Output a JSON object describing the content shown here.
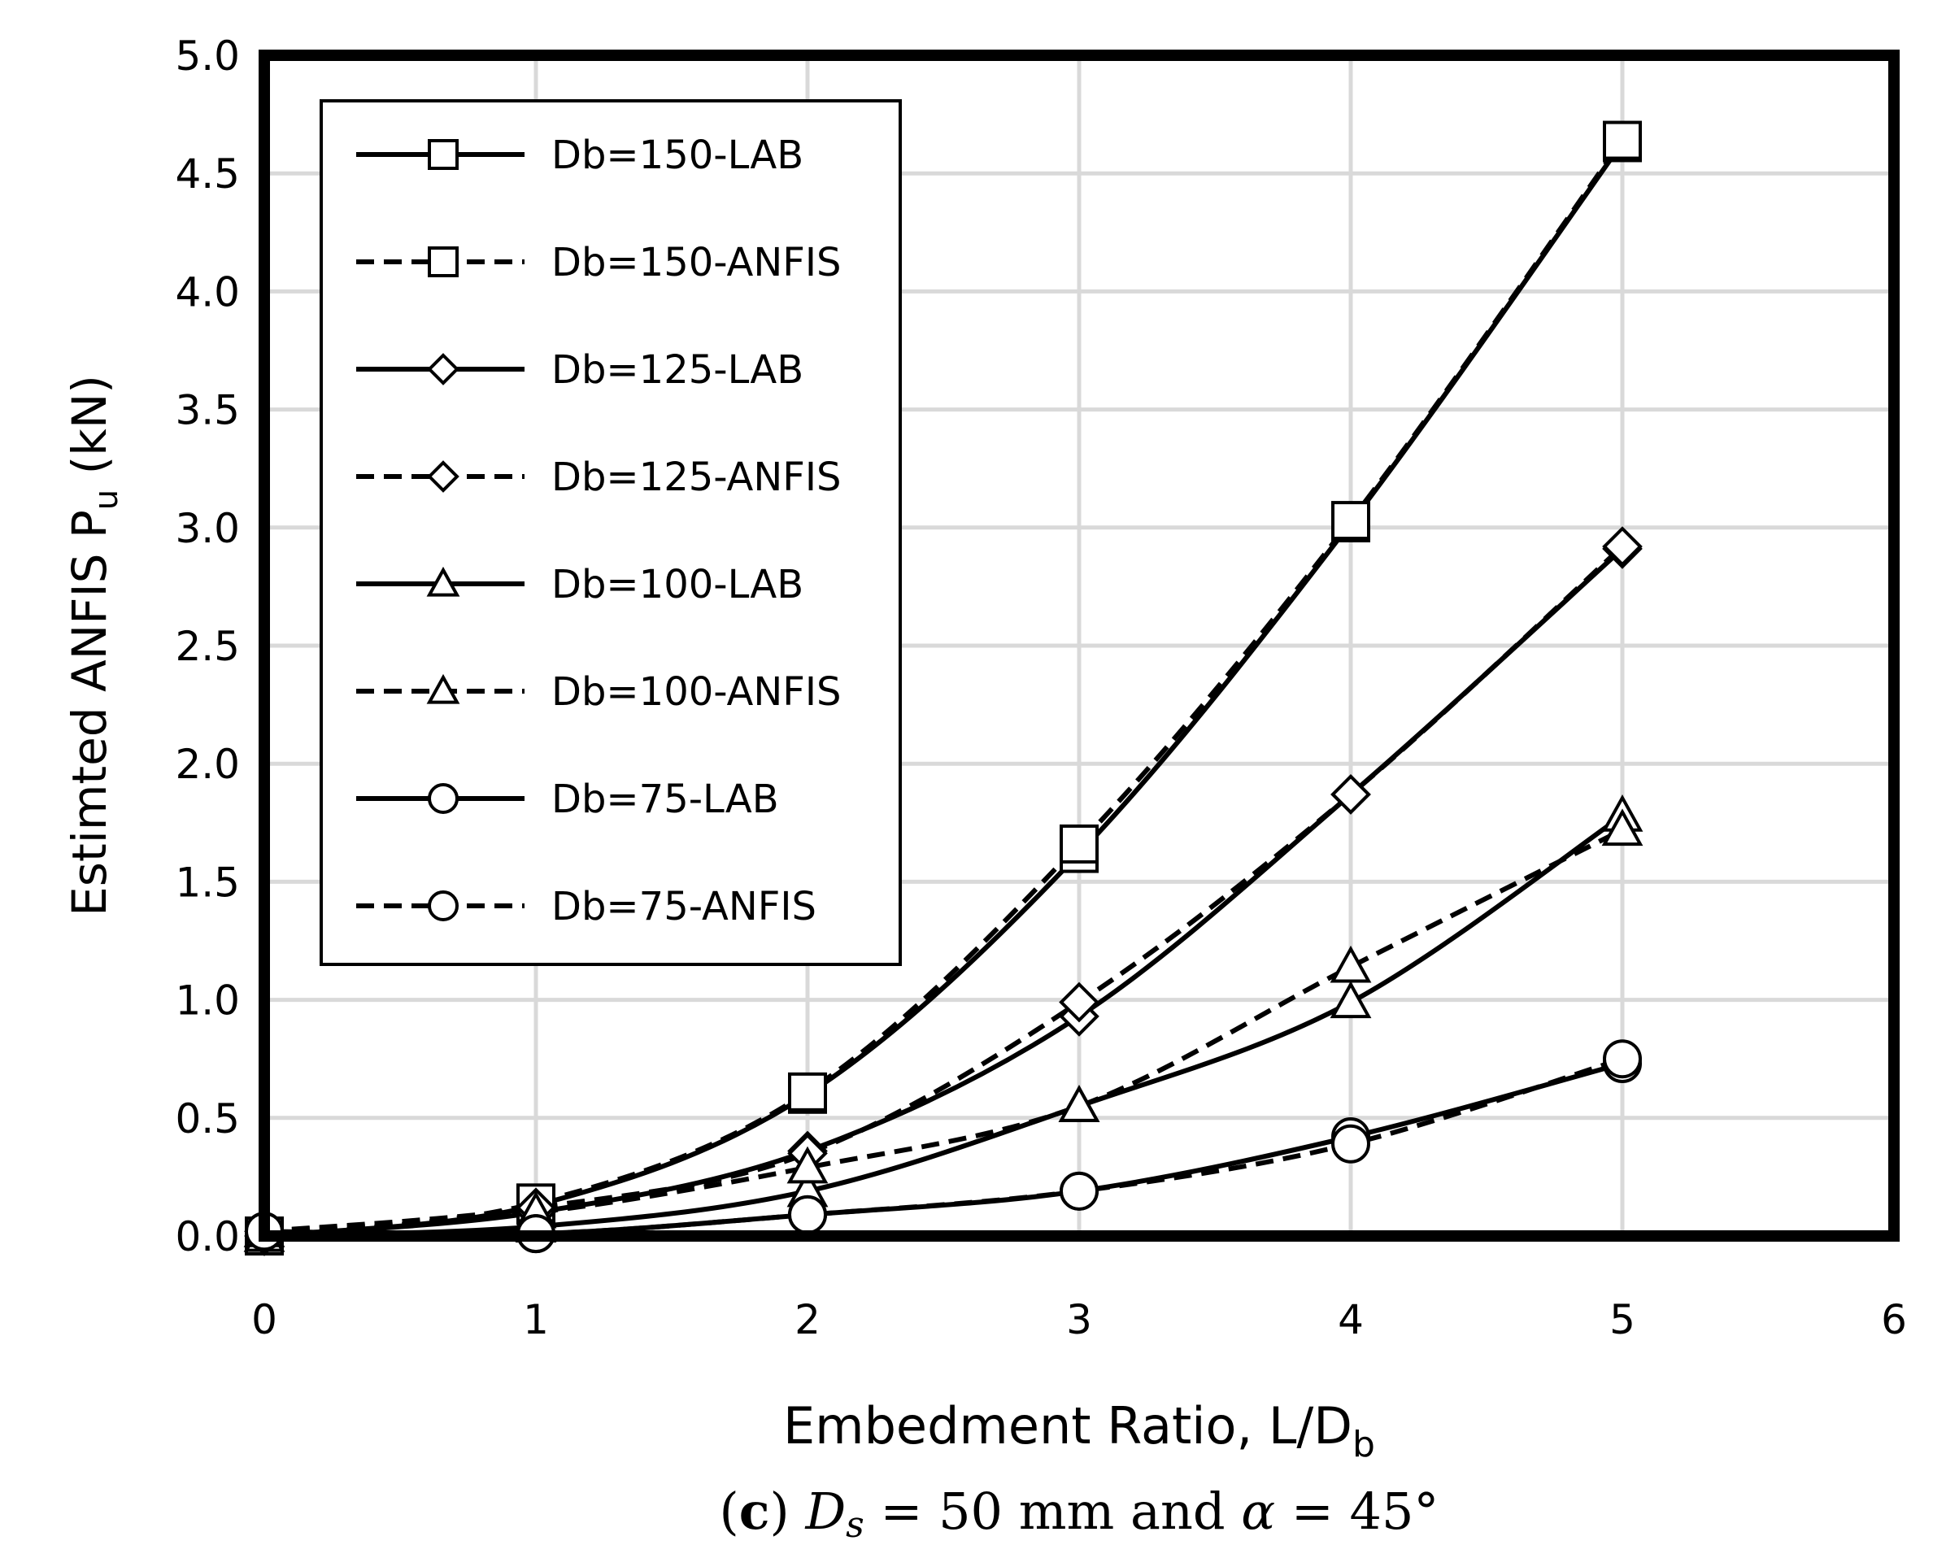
{
  "chart_data": {
    "type": "line",
    "title": "",
    "xlabel_main": "Embedment Ratio, L/D",
    "xlabel_sub": "b",
    "ylabel_main": "Estimted ANFIS P",
    "ylabel_sub": "u",
    "ylabel_unit": " (kN)",
    "xlim": [
      0,
      6
    ],
    "ylim": [
      0,
      5
    ],
    "x_ticks": [
      "0",
      "1",
      "2",
      "3",
      "4",
      "5",
      "6"
    ],
    "y_ticks": [
      "0.0",
      "0.5",
      "1.0",
      "1.5",
      "2.0",
      "2.5",
      "3.0",
      "3.5",
      "4.0",
      "4.5",
      "5.0"
    ],
    "grid": true,
    "legend_position": "top-left",
    "series": [
      {
        "name": "Db=150-LAB",
        "marker": "square",
        "dash": "solid",
        "x": [
          0,
          1,
          2,
          3,
          4,
          5
        ],
        "values": [
          0.0,
          0.13,
          0.6,
          1.62,
          3.02,
          4.63
        ]
      },
      {
        "name": "Db=150-ANFIS",
        "marker": "square",
        "dash": "dashed",
        "x": [
          0,
          1,
          2,
          3,
          4,
          5
        ],
        "values": [
          0.0,
          0.14,
          0.61,
          1.66,
          3.03,
          4.64
        ]
      },
      {
        "name": "Db=125-LAB",
        "marker": "diamond",
        "dash": "solid",
        "x": [
          0,
          1,
          2,
          3,
          4,
          5
        ],
        "values": [
          0.0,
          0.1,
          0.36,
          0.93,
          1.87,
          2.91
        ]
      },
      {
        "name": "Db=125-ANFIS",
        "marker": "diamond",
        "dash": "dashed",
        "x": [
          0,
          1,
          2,
          3,
          4,
          5
        ],
        "values": [
          0.02,
          0.12,
          0.35,
          0.99,
          1.87,
          2.92
        ]
      },
      {
        "name": "Db=100-LAB",
        "marker": "triangle",
        "dash": "solid",
        "x": [
          0,
          1,
          2,
          3,
          4,
          5
        ],
        "values": [
          0.0,
          0.04,
          0.19,
          0.55,
          0.99,
          1.78
        ]
      },
      {
        "name": "Db=100-ANFIS",
        "marker": "triangle",
        "dash": "dashed",
        "x": [
          0,
          1,
          2,
          3,
          4,
          5
        ],
        "values": [
          0.02,
          0.1,
          0.29,
          0.55,
          1.14,
          1.72
        ]
      },
      {
        "name": "Db=75-LAB",
        "marker": "circle",
        "dash": "solid",
        "x": [
          0,
          1,
          2,
          3,
          4,
          5
        ],
        "values": [
          0.02,
          0.01,
          0.09,
          0.19,
          0.42,
          0.73
        ]
      },
      {
        "name": "Db=75-ANFIS",
        "marker": "circle",
        "dash": "dashed",
        "x": [
          0,
          1,
          2,
          3,
          4,
          5
        ],
        "values": [
          0.02,
          0.01,
          0.09,
          0.19,
          0.39,
          0.75
        ]
      }
    ]
  },
  "caption": {
    "prefix": "(",
    "letter": "c",
    "close": ")",
    "ds": "D",
    "ds_sub": "s",
    "mid": " = 50 mm and ",
    "alpha": "α",
    "end": " = 45°"
  }
}
